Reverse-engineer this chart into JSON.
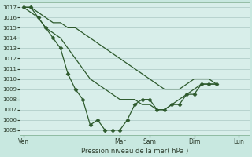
{
  "background_color": "#c8e8e0",
  "plot_bg_color": "#d8eeea",
  "grid_color": "#9fbfba",
  "line_color": "#2d5a2d",
  "marker_color": "#2d5a2d",
  "xlabel_text": "Pression niveau de la mer( hPa )",
  "ylim": [
    1004.5,
    1017.5
  ],
  "yticks": [
    1005,
    1006,
    1007,
    1008,
    1009,
    1010,
    1011,
    1012,
    1013,
    1014,
    1015,
    1016,
    1017
  ],
  "xtick_labels": [
    "Ven",
    "Mar",
    "Sam",
    "Dim",
    "Lun"
  ],
  "xtick_positions": [
    0,
    13,
    17,
    23,
    29
  ],
  "xlim": [
    -0.5,
    30.5
  ],
  "series_main": [
    1017,
    1017,
    1016,
    1015,
    1014,
    1013,
    1010.5,
    1009,
    1008,
    1005.5,
    1006,
    1005,
    1005,
    1005,
    1006,
    1007.5,
    1008,
    1008,
    1007,
    1007,
    1007.5,
    1007.5,
    1008.5,
    1008.5,
    1009.5,
    1009.5,
    1009.5,
    null,
    null,
    null,
    null
  ],
  "series_mid": [
    1017,
    1016.5,
    1016,
    1015,
    1014.5,
    1014,
    1013,
    1012,
    1011,
    1010,
    1009.5,
    1009,
    1008.5,
    1008,
    1008,
    1008,
    1007.5,
    1007.5,
    1007,
    1007,
    1007.5,
    1008,
    1008.5,
    1009,
    1009.5,
    1009.5,
    1009.5,
    null,
    null,
    null,
    null
  ],
  "series_top": [
    1017,
    1017,
    1016.5,
    1016,
    1015.5,
    1015.5,
    1015,
    1015,
    1014.5,
    1014,
    1013.5,
    1013,
    1012.5,
    1012,
    1011.5,
    1011,
    1010.5,
    1010,
    1009.5,
    1009,
    1009,
    1009,
    1009.5,
    1010,
    1010,
    1010,
    1009.5,
    null,
    null,
    null,
    null
  ],
  "n_points": 31
}
